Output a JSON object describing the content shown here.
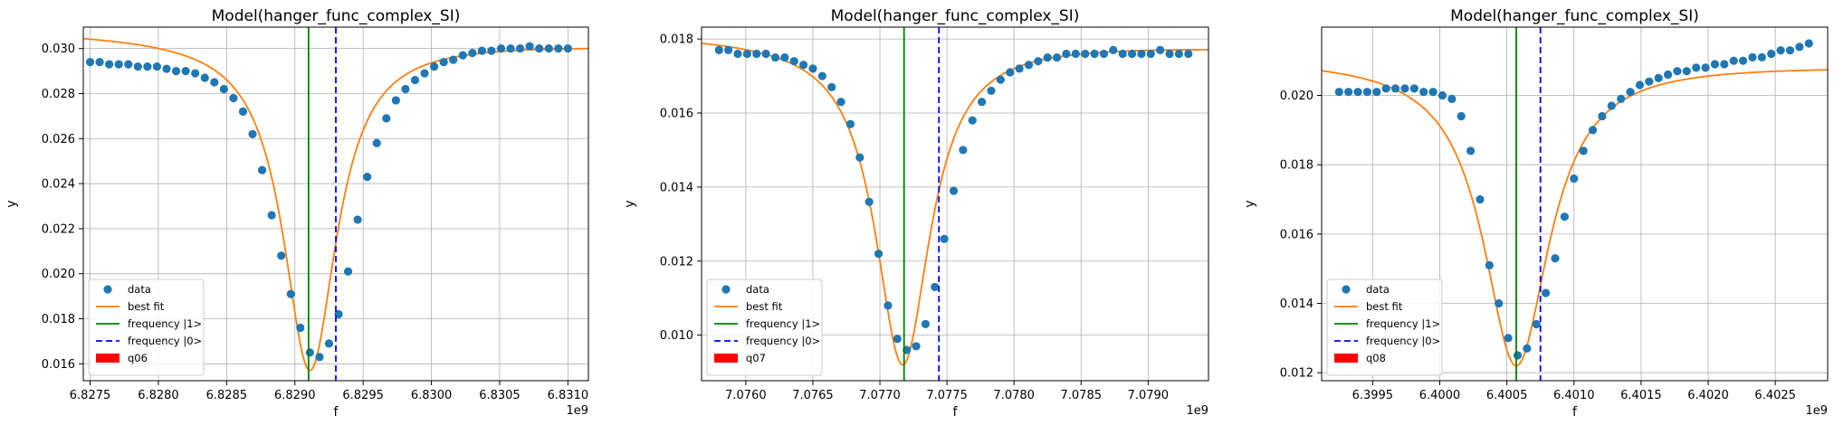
{
  "chart_data": [
    {
      "type": "scatter",
      "title": "Model(hanger_func_complex_SI)",
      "xlabel": "f",
      "ylabel": "y",
      "offset_text": "1e9",
      "xlim": [
        6.82745,
        6.83115
      ],
      "ylim": [
        0.01525,
        0.03095
      ],
      "xticks": [
        6.8275,
        6.828,
        6.8285,
        6.829,
        6.8295,
        6.83,
        6.8305,
        6.831
      ],
      "xtick_labels": [
        "6.8275",
        "6.8280",
        "6.8285",
        "6.8290",
        "6.8295",
        "6.8300",
        "6.8305",
        "6.8310"
      ],
      "yticks": [
        0.016,
        0.018,
        0.02,
        0.022,
        0.024,
        0.026,
        0.028,
        0.03
      ],
      "ytick_labels": [
        "0.016",
        "0.018",
        "0.020",
        "0.022",
        "0.024",
        "0.026",
        "0.028",
        "0.030"
      ],
      "grid": true,
      "legend_position": "lower-left",
      "vlines": [
        {
          "name": "frequency |1>",
          "x": 6.8291,
          "style": "solid",
          "color": "#008000"
        },
        {
          "name": "frequency |0>",
          "x": 6.8293,
          "style": "dashed",
          "color": "#0000ff"
        }
      ],
      "series": [
        {
          "name": "data",
          "kind": "points",
          "color": "#1f77b4",
          "x": [
            6.8275,
            6.82757,
            6.82764,
            6.82771,
            6.82778,
            6.82785,
            6.82792,
            6.82799,
            6.82806,
            6.82813,
            6.8282,
            6.82827,
            6.82834,
            6.82841,
            6.82848,
            6.82855,
            6.82862,
            6.82869,
            6.82876,
            6.82883,
            6.8289,
            6.82897,
            6.82904,
            6.82911,
            6.82918,
            6.82925,
            6.82932,
            6.82939,
            6.82946,
            6.82953,
            6.8296,
            6.82967,
            6.82974,
            6.82981,
            6.82988,
            6.82995,
            6.83002,
            6.83009,
            6.83016,
            6.83023,
            6.8303,
            6.83037,
            6.83044,
            6.83051,
            6.83058,
            6.83065,
            6.83072,
            6.83079,
            6.83086,
            6.83093,
            6.831
          ],
          "y": [
            0.0294,
            0.0294,
            0.0293,
            0.0293,
            0.0293,
            0.0292,
            0.0292,
            0.0292,
            0.0291,
            0.029,
            0.029,
            0.0289,
            0.0287,
            0.0285,
            0.0282,
            0.0278,
            0.0272,
            0.0262,
            0.0246,
            0.0226,
            0.0208,
            0.0191,
            0.0176,
            0.0165,
            0.0163,
            0.0169,
            0.0182,
            0.0201,
            0.0224,
            0.0243,
            0.0258,
            0.0269,
            0.0277,
            0.0282,
            0.0286,
            0.0289,
            0.0292,
            0.0294,
            0.0295,
            0.0297,
            0.0298,
            0.0299,
            0.0299,
            0.03,
            0.03,
            0.03,
            0.0301,
            0.03,
            0.03,
            0.03,
            0.03
          ]
        },
        {
          "name": "best fit",
          "kind": "line",
          "color": "#ff7f0e",
          "center": 6.82911,
          "width": 0.00024,
          "base": 0.0305,
          "depth": 0.0148,
          "tilt": -0.0007,
          "asym": 0.001
        }
      ],
      "legend": [
        {
          "label": "data",
          "kind": "marker",
          "color": "#1f77b4"
        },
        {
          "label": "best fit",
          "kind": "line",
          "color": "#ff7f0e"
        },
        {
          "label": "frequency |1>",
          "kind": "line",
          "color": "#008000"
        },
        {
          "label": "frequency |0>",
          "kind": "dash",
          "color": "#0000ff"
        },
        {
          "label": "q06",
          "kind": "patch",
          "color": "#ff0000"
        }
      ]
    },
    {
      "type": "scatter",
      "title": "Model(hanger_func_complex_SI)",
      "xlabel": "f",
      "ylabel": "y",
      "offset_text": "1e9",
      "xlim": [
        7.07567,
        7.07945
      ],
      "ylim": [
        0.00877,
        0.01832
      ],
      "xticks": [
        7.076,
        7.0765,
        7.077,
        7.0775,
        7.078,
        7.0785,
        7.079
      ],
      "xtick_labels": [
        "7.0760",
        "7.0765",
        "7.0770",
        "7.0775",
        "7.0780",
        "7.0785",
        "7.0790"
      ],
      "yticks": [
        0.01,
        0.012,
        0.014,
        0.016,
        0.018
      ],
      "ytick_labels": [
        "0.010",
        "0.012",
        "0.014",
        "0.016",
        "0.018"
      ],
      "grid": true,
      "legend_position": "lower-left",
      "vlines": [
        {
          "name": "frequency |1>",
          "x": 7.07718,
          "style": "solid",
          "color": "#008000"
        },
        {
          "name": "frequency |0>",
          "x": 7.07744,
          "style": "dashed",
          "color": "#0000ff"
        }
      ],
      "series": [
        {
          "name": "data",
          "kind": "points",
          "color": "#1f77b4",
          "x": [
            7.0758,
            7.07587,
            7.07594,
            7.07601,
            7.07608,
            7.07615,
            7.07622,
            7.07629,
            7.07636,
            7.07643,
            7.0765,
            7.07657,
            7.07664,
            7.07671,
            7.07678,
            7.07685,
            7.07692,
            7.07699,
            7.07706,
            7.07713,
            7.0772,
            7.07727,
            7.07734,
            7.07741,
            7.07748,
            7.07755,
            7.07762,
            7.07769,
            7.07776,
            7.07783,
            7.0779,
            7.07797,
            7.07804,
            7.07811,
            7.07818,
            7.07825,
            7.07832,
            7.07839,
            7.07846,
            7.07853,
            7.0786,
            7.07867,
            7.07874,
            7.07881,
            7.07888,
            7.07895,
            7.07902,
            7.07909,
            7.07916,
            7.07923,
            7.0793
          ],
          "y": [
            0.0177,
            0.0177,
            0.0176,
            0.0176,
            0.0176,
            0.0176,
            0.0175,
            0.0175,
            0.0174,
            0.0173,
            0.0172,
            0.017,
            0.0167,
            0.0163,
            0.0157,
            0.0148,
            0.0136,
            0.0122,
            0.0108,
            0.0099,
            0.0096,
            0.0097,
            0.0103,
            0.0113,
            0.0126,
            0.0139,
            0.015,
            0.0158,
            0.0163,
            0.0166,
            0.0169,
            0.0171,
            0.0172,
            0.0173,
            0.0174,
            0.0175,
            0.0175,
            0.0176,
            0.0176,
            0.0176,
            0.0176,
            0.0176,
            0.0177,
            0.0176,
            0.0176,
            0.0176,
            0.0176,
            0.0177,
            0.0176,
            0.0176,
            0.0176
          ]
        },
        {
          "name": "best fit",
          "kind": "line",
          "color": "#ff7f0e",
          "center": 7.07717,
          "width": 0.00025,
          "base": 0.018,
          "depth": 0.0088,
          "tilt": -0.0004,
          "asym": 0.0006
        }
      ],
      "legend": [
        {
          "label": "data",
          "kind": "marker",
          "color": "#1f77b4"
        },
        {
          "label": "best fit",
          "kind": "line",
          "color": "#ff7f0e"
        },
        {
          "label": "frequency |1>",
          "kind": "line",
          "color": "#008000"
        },
        {
          "label": "frequency |0>",
          "kind": "dash",
          "color": "#0000ff"
        },
        {
          "label": "q07",
          "kind": "patch",
          "color": "#ff0000"
        }
      ]
    },
    {
      "type": "scatter",
      "title": "Model(hanger_func_complex_SI)",
      "xlabel": "f",
      "ylabel": "y",
      "offset_text": "1e9",
      "xlim": [
        6.39912,
        6.40289
      ],
      "ylim": [
        0.01177,
        0.02197
      ],
      "xticks": [
        6.3995,
        6.4,
        6.4005,
        6.401,
        6.4015,
        6.402,
        6.4025
      ],
      "xtick_labels": [
        "6.3995",
        "6.4000",
        "6.4005",
        "6.4010",
        "6.4015",
        "6.4020",
        "6.4025"
      ],
      "yticks": [
        0.012,
        0.014,
        0.016,
        0.018,
        0.02
      ],
      "ytick_labels": [
        "0.012",
        "0.014",
        "0.016",
        "0.018",
        "0.020"
      ],
      "grid": true,
      "legend_position": "lower-left",
      "vlines": [
        {
          "name": "frequency |1>",
          "x": 6.40057,
          "style": "solid",
          "color": "#008000"
        },
        {
          "name": "frequency |0>",
          "x": 6.40075,
          "style": "dashed",
          "color": "#0000ff"
        }
      ],
      "series": [
        {
          "name": "data",
          "kind": "points",
          "color": "#1f77b4",
          "x": [
            6.39925,
            6.39932,
            6.39939,
            6.39946,
            6.39953,
            6.3996,
            6.39967,
            6.39974,
            6.39981,
            6.39988,
            6.39995,
            6.40002,
            6.40009,
            6.40016,
            6.40023,
            6.4003,
            6.40037,
            6.40044,
            6.40051,
            6.40058,
            6.40065,
            6.40072,
            6.40079,
            6.40086,
            6.40093,
            6.401,
            6.40107,
            6.40114,
            6.40121,
            6.40128,
            6.40135,
            6.40142,
            6.40149,
            6.40156,
            6.40163,
            6.4017,
            6.40177,
            6.40184,
            6.40191,
            6.40198,
            6.40205,
            6.40212,
            6.40219,
            6.40226,
            6.40233,
            6.4024,
            6.40247,
            6.40254,
            6.40261,
            6.40268,
            6.40275
          ],
          "y": [
            0.0201,
            0.0201,
            0.0201,
            0.0201,
            0.0201,
            0.0202,
            0.0202,
            0.0202,
            0.0202,
            0.0201,
            0.0201,
            0.02,
            0.0199,
            0.0194,
            0.0184,
            0.017,
            0.0151,
            0.014,
            0.013,
            0.0125,
            0.0127,
            0.0134,
            0.0143,
            0.0153,
            0.0165,
            0.0176,
            0.0184,
            0.019,
            0.0194,
            0.0197,
            0.0199,
            0.0201,
            0.0203,
            0.0204,
            0.0205,
            0.0206,
            0.0207,
            0.0207,
            0.0208,
            0.0208,
            0.0209,
            0.0209,
            0.021,
            0.021,
            0.0211,
            0.0211,
            0.0212,
            0.0213,
            0.0213,
            0.0214,
            0.0215
          ]
        },
        {
          "name": "best fit",
          "kind": "line",
          "color": "#ff7f0e",
          "center": 6.40057,
          "width": 0.0003,
          "base": 0.021,
          "depth": 0.0088,
          "tilt": -0.0003,
          "asym": 0.0004
        }
      ],
      "legend": [
        {
          "label": "data",
          "kind": "marker",
          "color": "#1f77b4"
        },
        {
          "label": "best fit",
          "kind": "line",
          "color": "#ff7f0e"
        },
        {
          "label": "frequency |1>",
          "kind": "line",
          "color": "#008000"
        },
        {
          "label": "frequency |0>",
          "kind": "dash",
          "color": "#0000ff"
        },
        {
          "label": "q08",
          "kind": "patch",
          "color": "#ff0000"
        }
      ]
    }
  ]
}
